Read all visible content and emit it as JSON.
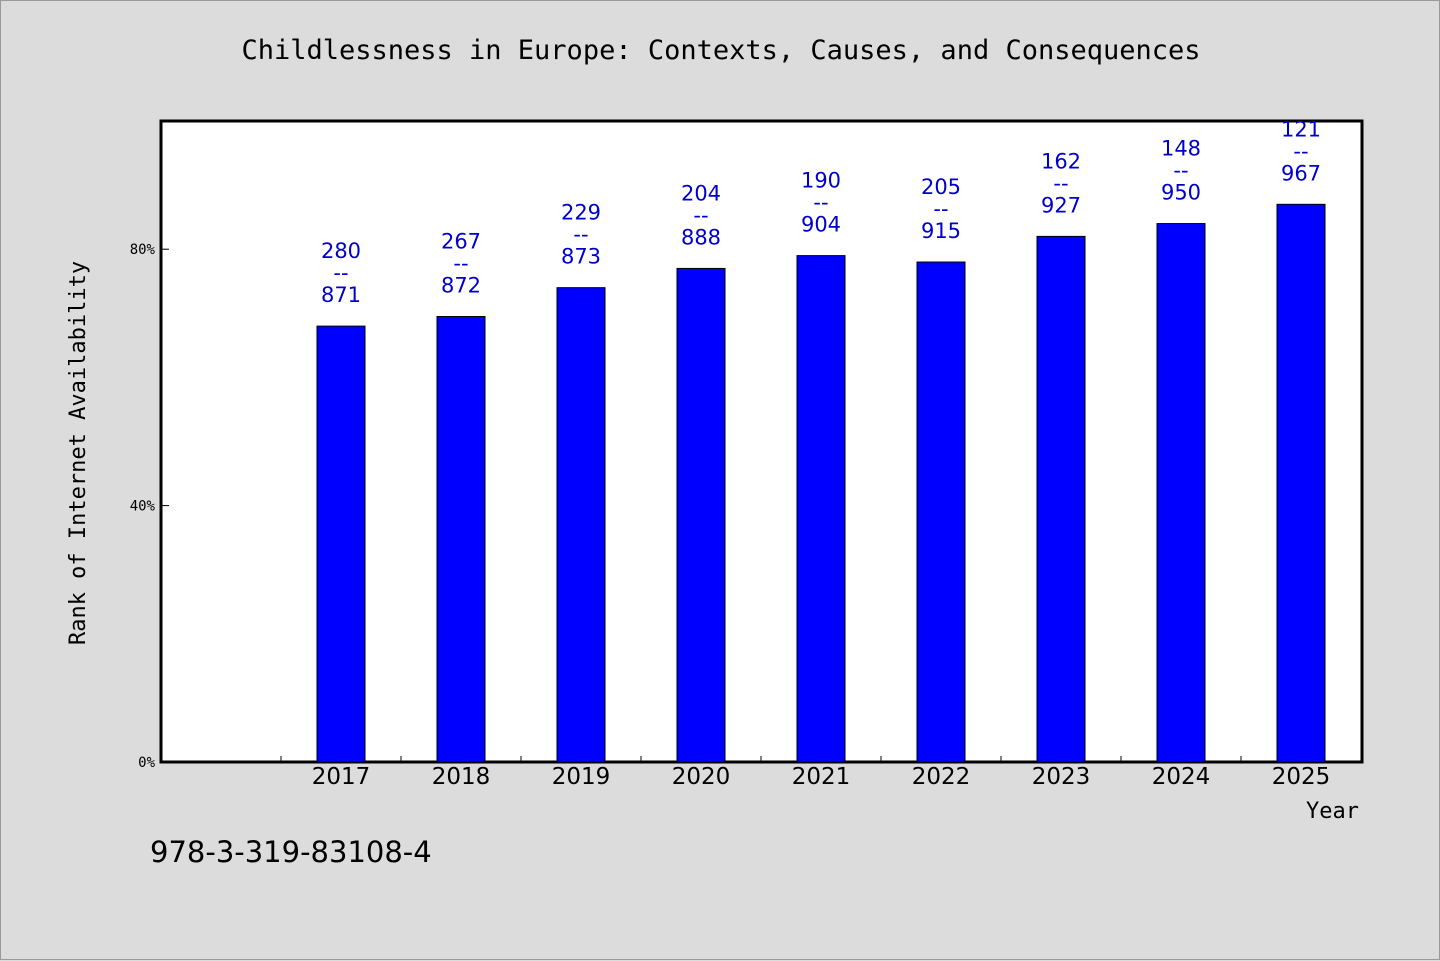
{
  "chart_data": {
    "type": "bar",
    "title": "Childlessness in Europe: Contexts, Causes, and Consequences",
    "xlabel": "Year",
    "ylabel": "Rank of Internet Availability",
    "categories": [
      "2017",
      "2018",
      "2019",
      "2020",
      "2021",
      "2022",
      "2023",
      "2024",
      "2025"
    ],
    "series": [
      {
        "values": [
          68,
          69.5,
          74,
          77,
          79,
          78,
          82,
          84,
          87
        ]
      }
    ],
    "data_labels": [
      {
        "top": "280",
        "sep": "--",
        "bottom": "871"
      },
      {
        "top": "267",
        "sep": "--",
        "bottom": "872"
      },
      {
        "top": "229",
        "sep": "--",
        "bottom": "873"
      },
      {
        "top": "204",
        "sep": "--",
        "bottom": "888"
      },
      {
        "top": "190",
        "sep": "--",
        "bottom": "904"
      },
      {
        "top": "205",
        "sep": "--",
        "bottom": "915"
      },
      {
        "top": "162",
        "sep": "--",
        "bottom": "927"
      },
      {
        "top": "148",
        "sep": "--",
        "bottom": "950"
      },
      {
        "top": "121",
        "sep": "--",
        "bottom": "967"
      }
    ],
    "yticks": [
      0,
      40,
      80
    ],
    "ytick_labels": [
      "0%",
      "40%",
      "80%"
    ],
    "ylim": [
      0,
      100
    ],
    "grid": false,
    "bar_color": "#0000ff",
    "label_color": "#0000cc"
  },
  "footer": {
    "code": "978-3-319-83108-4"
  }
}
